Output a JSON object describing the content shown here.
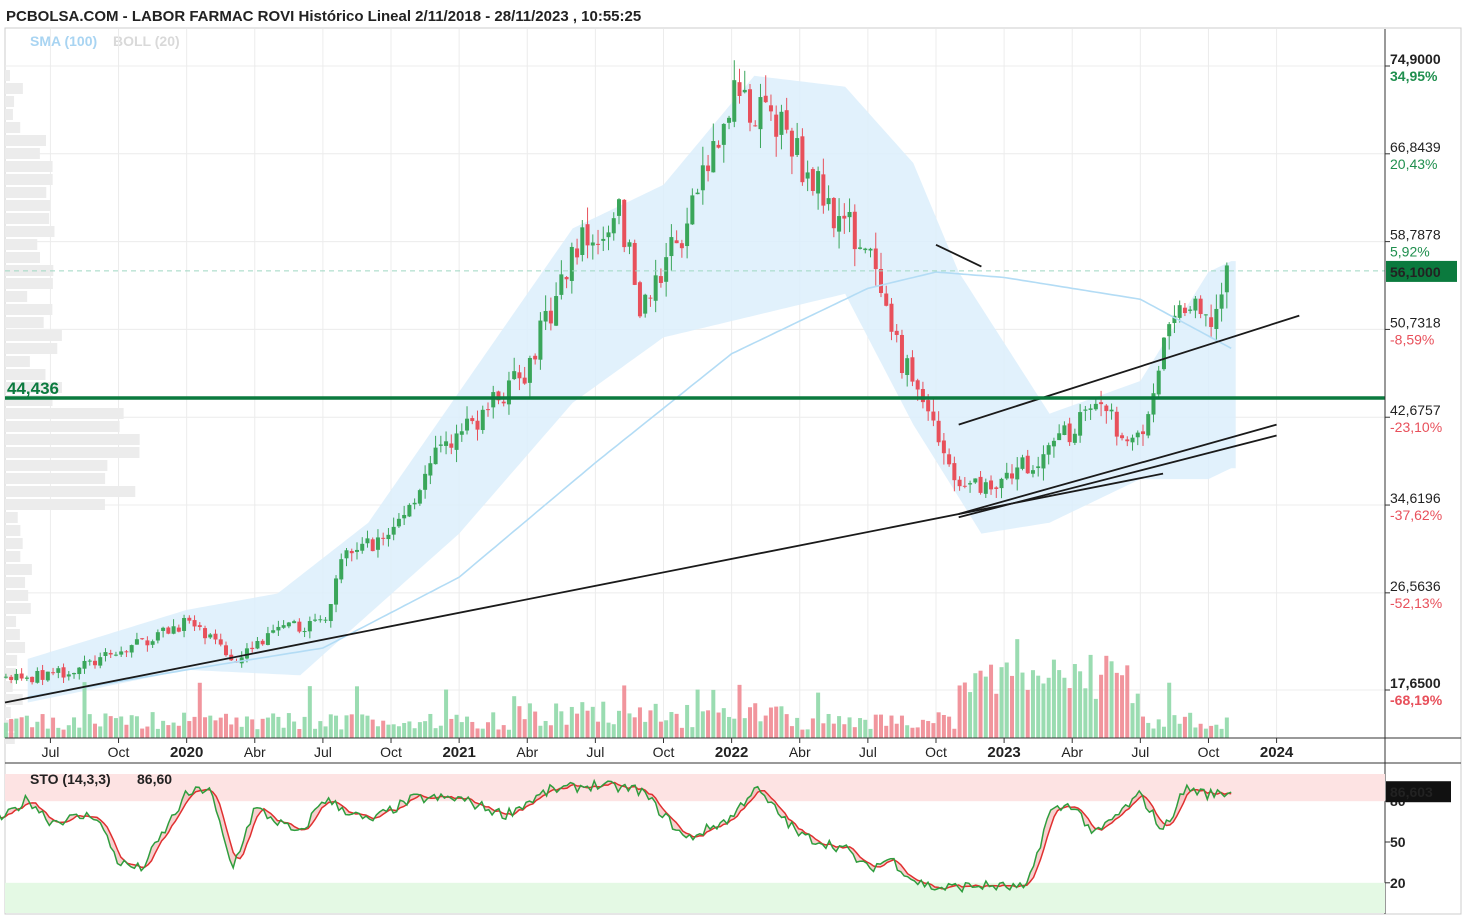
{
  "header": {
    "title": "PCBOLSA.COM - LABOR FARMAC ROVI Histórico Lineal 2/11/2018 - 28/11/2023 , 10:55:25",
    "legend_sma": "SMA (100)",
    "legend_boll": "BOLL (20)"
  },
  "colors": {
    "up": "#3aa65a",
    "down": "#e8505b",
    "sma": "#b3dcf5",
    "boll_fill": "#dceefb",
    "hline": "#0b7a3e",
    "current_badge": "#0b7a3e",
    "sto_k": "#2e9e3e",
    "sto_d": "#e03030"
  },
  "price_axis": {
    "ticks": [
      {
        "price": "74,9000",
        "pct": "34,95%",
        "value": 74.9,
        "pct_color": "#1f8f4e",
        "bold": true
      },
      {
        "price": "66,8439",
        "pct": "20,43%",
        "value": 66.8439,
        "pct_color": "#1f8f4e",
        "bold": false
      },
      {
        "price": "58,7878",
        "pct": "5,92%",
        "value": 58.7878,
        "pct_color": "#1f8f4e",
        "bold": false
      },
      {
        "price": "50,7318",
        "pct": "-8,59%",
        "value": 50.7318,
        "pct_color": "#e8505b",
        "bold": false
      },
      {
        "price": "42,6757",
        "pct": "-23,10%",
        "value": 42.6757,
        "pct_color": "#e8505b",
        "bold": false
      },
      {
        "price": "34,6196",
        "pct": "-37,62%",
        "value": 34.6196,
        "pct_color": "#e8505b",
        "bold": false
      },
      {
        "price": "26,5636",
        "pct": "-52,13%",
        "value": 26.5636,
        "pct_color": "#e8505b",
        "bold": false
      },
      {
        "price": "17,6500",
        "pct": "-68,19%",
        "value": 17.65,
        "pct_color": "#e8505b",
        "bold": true
      }
    ],
    "current_price": "56,1000",
    "current_value": 56.1
  },
  "horizontal_line": {
    "label": "44,436",
    "value": 44.436
  },
  "x_axis": {
    "labels": [
      {
        "text": "Jul",
        "year": false
      },
      {
        "text": "Oct",
        "year": false
      },
      {
        "text": "2020",
        "year": true
      },
      {
        "text": "Abr",
        "year": false
      },
      {
        "text": "Jul",
        "year": false
      },
      {
        "text": "Oct",
        "year": false
      },
      {
        "text": "2021",
        "year": true
      },
      {
        "text": "Abr",
        "year": false
      },
      {
        "text": "Jul",
        "year": false
      },
      {
        "text": "Oct",
        "year": false
      },
      {
        "text": "2022",
        "year": true
      },
      {
        "text": "Abr",
        "year": false
      },
      {
        "text": "Jul",
        "year": false
      },
      {
        "text": "Oct",
        "year": false
      },
      {
        "text": "2023",
        "year": true
      },
      {
        "text": "Abr",
        "year": false
      },
      {
        "text": "Jul",
        "year": false
      },
      {
        "text": "Oct",
        "year": false
      },
      {
        "text": "2024",
        "year": true
      }
    ]
  },
  "stochastic": {
    "label": "STO (14,3,3)",
    "value_label": "86,60",
    "current_badge": "86,603",
    "levels": [
      {
        "text": "80",
        "value": 80,
        "color": "#e03030"
      },
      {
        "text": "50",
        "value": 50,
        "color": "#222222"
      },
      {
        "text": "20",
        "value": 20,
        "color": "#1f8f4e"
      }
    ]
  },
  "chart_data": {
    "type": "line",
    "title": "PCBOLSA.COM - LABOR FARMAC ROVI Histórico Lineal 2/11/2018 - 28/11/2023 , 10:55:25",
    "series_names": [
      "SMA (100)",
      "BOLL (20)",
      "STO (14,3,3)"
    ],
    "x_range": [
      "2019-05",
      "2024-03"
    ],
    "ylim": [
      13.5,
      78
    ],
    "price_points": [
      {
        "date": "2019-06",
        "close": 18.7
      },
      {
        "date": "2019-08",
        "close": 19.5
      },
      {
        "date": "2019-10",
        "close": 21.0
      },
      {
        "date": "2020-01",
        "close": 24.0
      },
      {
        "date": "2020-03",
        "close": 20.5
      },
      {
        "date": "2020-05",
        "close": 23.0
      },
      {
        "date": "2020-07",
        "close": 24.0
      },
      {
        "date": "2020-08",
        "close": 30.0
      },
      {
        "date": "2020-10",
        "close": 32.0
      },
      {
        "date": "2020-12",
        "close": 39.0
      },
      {
        "date": "2021-02",
        "close": 43.0
      },
      {
        "date": "2021-04",
        "close": 47.0
      },
      {
        "date": "2021-06",
        "close": 58.0
      },
      {
        "date": "2021-08",
        "close": 62.0
      },
      {
        "date": "2021-09",
        "close": 53.0
      },
      {
        "date": "2021-11",
        "close": 60.0
      },
      {
        "date": "2022-01",
        "close": 72.0
      },
      {
        "date": "2022-03",
        "close": 70.0
      },
      {
        "date": "2022-05",
        "close": 63.0
      },
      {
        "date": "2022-07",
        "close": 58.0
      },
      {
        "date": "2022-08",
        "close": 50.0
      },
      {
        "date": "2022-10",
        "close": 42.0
      },
      {
        "date": "2022-11",
        "close": 36.0
      },
      {
        "date": "2023-01",
        "close": 37.0
      },
      {
        "date": "2023-03",
        "close": 40.0
      },
      {
        "date": "2023-05",
        "close": 43.0
      },
      {
        "date": "2023-07",
        "close": 41.0
      },
      {
        "date": "2023-08",
        "close": 49.0
      },
      {
        "date": "2023-09",
        "close": 53.0
      },
      {
        "date": "2023-10",
        "close": 51.0
      },
      {
        "date": "2023-11",
        "close": 56.1
      }
    ],
    "sma_100": [
      {
        "date": "2019-06",
        "value": 17.0
      },
      {
        "date": "2020-01",
        "value": 19.5
      },
      {
        "date": "2020-07",
        "value": 21.5
      },
      {
        "date": "2021-01",
        "value": 28.0
      },
      {
        "date": "2021-07",
        "value": 38.5
      },
      {
        "date": "2022-01",
        "value": 48.5
      },
      {
        "date": "2022-07",
        "value": 54.5
      },
      {
        "date": "2022-10",
        "value": 56.0
      },
      {
        "date": "2023-01",
        "value": 55.5
      },
      {
        "date": "2023-07",
        "value": 53.5
      },
      {
        "date": "2023-11",
        "value": 49.0
      }
    ],
    "boll_upper": [
      {
        "date": "2019-06",
        "value": 20.5
      },
      {
        "date": "2020-01",
        "value": 25.0
      },
      {
        "date": "2020-05",
        "value": 26.5
      },
      {
        "date": "2020-09",
        "value": 33.0
      },
      {
        "date": "2021-01",
        "value": 45.0
      },
      {
        "date": "2021-06",
        "value": 60.0
      },
      {
        "date": "2021-10",
        "value": 64.0
      },
      {
        "date": "2022-02",
        "value": 74.0
      },
      {
        "date": "2022-06",
        "value": 73.0
      },
      {
        "date": "2022-09",
        "value": 66.0
      },
      {
        "date": "2022-11",
        "value": 56.0
      },
      {
        "date": "2023-03",
        "value": 43.0
      },
      {
        "date": "2023-07",
        "value": 46.0
      },
      {
        "date": "2023-10",
        "value": 56.0
      },
      {
        "date": "2023-11",
        "value": 57.0
      }
    ],
    "boll_lower": [
      {
        "date": "2019-06",
        "value": 16.5
      },
      {
        "date": "2020-01",
        "value": 19.5
      },
      {
        "date": "2020-06",
        "value": 19.0
      },
      {
        "date": "2021-01",
        "value": 32.0
      },
      {
        "date": "2021-06",
        "value": 44.0
      },
      {
        "date": "2021-10",
        "value": 50.0
      },
      {
        "date": "2022-02",
        "value": 52.0
      },
      {
        "date": "2022-06",
        "value": 54.0
      },
      {
        "date": "2022-09",
        "value": 42.0
      },
      {
        "date": "2022-12",
        "value": 32.0
      },
      {
        "date": "2023-03",
        "value": 33.0
      },
      {
        "date": "2023-07",
        "value": 37.0
      },
      {
        "date": "2023-10",
        "value": 37.0
      },
      {
        "date": "2023-11",
        "value": 38.0
      }
    ],
    "trendlines": [
      {
        "from": {
          "date": "2019-05",
          "value": 16.5
        },
        "to": {
          "date": "2023-08",
          "value": 37.5
        }
      },
      {
        "from": {
          "date": "2022-11",
          "value": 33.5
        },
        "to": {
          "date": "2024-01",
          "value": 41.0
        }
      },
      {
        "from": {
          "date": "2022-11",
          "value": 33.8
        },
        "to": {
          "date": "2024-01",
          "value": 42.0
        }
      },
      {
        "from": {
          "date": "2022-11",
          "value": 42.0
        },
        "to": {
          "date": "2024-02",
          "value": 52.0
        }
      },
      {
        "from": {
          "date": "2022-10",
          "value": 58.5
        },
        "to": {
          "date": "2022-12",
          "value": 56.5
        }
      }
    ],
    "stochastic_k": [
      {
        "date": "2019-05",
        "value": 68
      },
      {
        "date": "2019-06",
        "value": 82
      },
      {
        "date": "2019-07",
        "value": 65
      },
      {
        "date": "2019-09",
        "value": 70
      },
      {
        "date": "2019-10",
        "value": 35
      },
      {
        "date": "2019-11",
        "value": 30
      },
      {
        "date": "2020-01",
        "value": 85
      },
      {
        "date": "2020-02",
        "value": 90
      },
      {
        "date": "2020-03",
        "value": 30
      },
      {
        "date": "2020-04",
        "value": 75
      },
      {
        "date": "2020-06",
        "value": 55
      },
      {
        "date": "2020-07",
        "value": 82
      },
      {
        "date": "2020-09",
        "value": 65
      },
      {
        "date": "2020-11",
        "value": 82
      },
      {
        "date": "2021-01",
        "value": 82
      },
      {
        "date": "2021-03",
        "value": 70
      },
      {
        "date": "2021-05",
        "value": 88
      },
      {
        "date": "2021-07",
        "value": 92
      },
      {
        "date": "2021-09",
        "value": 88
      },
      {
        "date": "2021-11",
        "value": 52
      },
      {
        "date": "2022-01",
        "value": 68
      },
      {
        "date": "2022-02",
        "value": 90
      },
      {
        "date": "2022-04",
        "value": 55
      },
      {
        "date": "2022-06",
        "value": 45
      },
      {
        "date": "2022-07",
        "value": 30
      },
      {
        "date": "2022-08",
        "value": 38
      },
      {
        "date": "2022-09",
        "value": 22
      },
      {
        "date": "2022-10",
        "value": 16
      },
      {
        "date": "2022-12",
        "value": 18
      },
      {
        "date": "2023-02",
        "value": 16
      },
      {
        "date": "2023-03",
        "value": 72
      },
      {
        "date": "2023-04",
        "value": 78
      },
      {
        "date": "2023-05",
        "value": 55
      },
      {
        "date": "2023-06",
        "value": 70
      },
      {
        "date": "2023-07",
        "value": 85
      },
      {
        "date": "2023-08",
        "value": 58
      },
      {
        "date": "2023-09",
        "value": 90
      },
      {
        "date": "2023-10",
        "value": 85
      },
      {
        "date": "2023-11",
        "value": 86.603
      }
    ]
  }
}
